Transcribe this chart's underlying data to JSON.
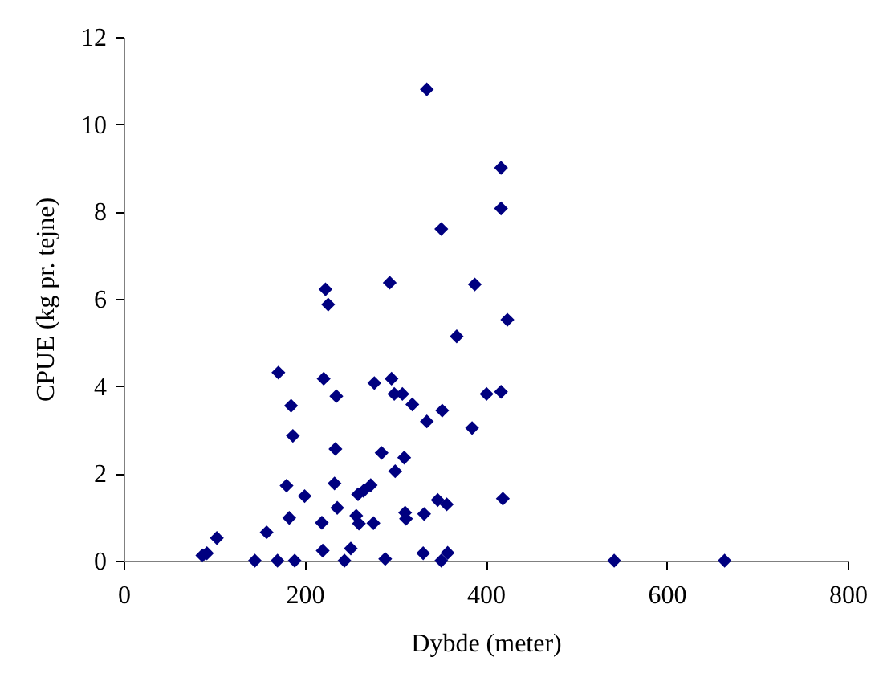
{
  "chart_data": {
    "type": "scatter",
    "xlabel": "Dybde (meter)",
    "ylabel": "CPUE (kg pr. tejne)",
    "xlim": [
      0,
      800
    ],
    "xticks": [
      0,
      200,
      400,
      600,
      800
    ],
    "ylim": [
      0,
      12
    ],
    "yticks": [
      0,
      2,
      4,
      6,
      8,
      10,
      12
    ],
    "grid": false,
    "marker": "diamond",
    "series": [
      {
        "color": "#000080",
        "x": [
          335,
          417,
          417,
          351,
          294,
          388,
          223,
          226,
          424,
          368,
          171,
          221,
          277,
          296,
          235,
          299,
          308,
          319,
          401,
          417,
          185,
          352,
          335,
          385,
          187,
          234,
          285,
          310,
          300,
          180,
          233,
          273,
          265,
          259,
          200,
          419,
          347,
          357,
          236,
          183,
          311,
          312,
          332,
          257,
          219,
          260,
          276,
          158,
          103,
          92,
          87,
          220,
          251,
          331,
          358,
          145,
          170,
          189,
          244,
          289,
          351,
          542,
          664
        ],
        "values": [
          10.8,
          9.0,
          8.07,
          7.6,
          6.37,
          6.33,
          6.22,
          5.87,
          5.52,
          5.14,
          4.31,
          4.17,
          4.07,
          4.17,
          3.77,
          3.82,
          3.82,
          3.58,
          3.82,
          3.87,
          3.55,
          3.44,
          3.19,
          3.04,
          2.86,
          2.56,
          2.47,
          2.36,
          2.05,
          1.72,
          1.77,
          1.73,
          1.6,
          1.52,
          1.48,
          1.42,
          1.39,
          1.29,
          1.21,
          0.98,
          1.1,
          0.96,
          1.07,
          1.03,
          0.87,
          0.85,
          0.86,
          0.65,
          0.52,
          0.17,
          0.12,
          0.23,
          0.28,
          0.17,
          0.18,
          0,
          0,
          0,
          0,
          0.04,
          0,
          0,
          0
        ]
      }
    ]
  }
}
